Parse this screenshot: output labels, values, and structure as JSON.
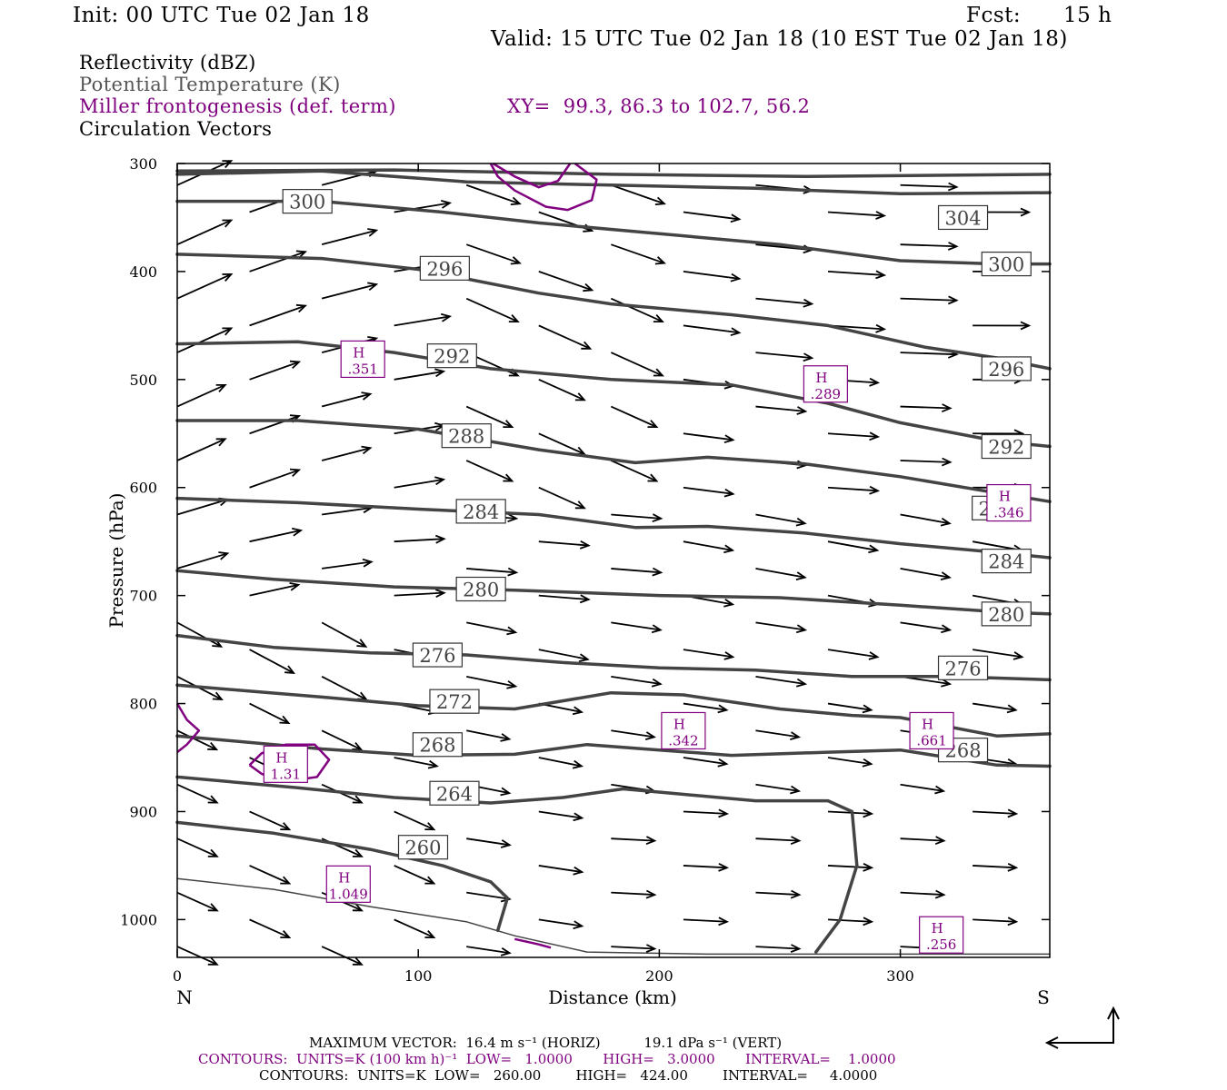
{
  "header": {
    "init": "Init: 00 UTC Tue 02 Jan 18",
    "fcst_label": "Fcst:",
    "fcst_value": "15 h",
    "valid": "Valid: 15 UTC Tue 02 Jan 18 (10 EST Tue 02 Jan 18)"
  },
  "legend": {
    "reflectivity": "Reflectivity (dBZ)",
    "theta": "Potential Temperature (K)",
    "frontogenesis": "Miller frontogenesis (def. term)",
    "xy": "XY=  99.3, 86.3 to 102.7, 56.2",
    "vectors": "Circulation Vectors"
  },
  "footer": {
    "max_vector": "MAXIMUM VECTOR:  16.4 m s⁻¹ (HORIZ)          19.1 dPa s⁻¹ (VERT)",
    "contours_purple": "CONTOURS:  UNITS=K (100 km h)⁻¹  LOW=   1.0000       HIGH=   3.0000       INTERVAL=    1.0000",
    "contours_black": "CONTOURS:  UNITS=K  LOW=   260.00        HIGH=   424.00        INTERVAL=     4.0000"
  },
  "colors": {
    "theta": "#444444",
    "fronto": "#800080",
    "vector": "#000000"
  },
  "chart_data": {
    "type": "cross-section",
    "xlabel": "Distance (km)",
    "ylabel": "Pressure (hPa)",
    "x_left_label": "N",
    "x_right_label": "S",
    "xlim": [
      0,
      362
    ],
    "ylim": [
      300,
      1035
    ],
    "y_scale": "linear",
    "x_ticks": [
      0,
      100,
      200,
      300
    ],
    "y_ticks": [
      300,
      400,
      500,
      600,
      700,
      800,
      900,
      1000
    ],
    "isentropes": [
      {
        "label": "260",
        "label_x": 102,
        "label_y": 933,
        "points": [
          [
            0,
            910
          ],
          [
            40,
            920
          ],
          [
            80,
            935
          ],
          [
            110,
            950
          ],
          [
            130,
            965
          ],
          [
            137,
            980
          ],
          [
            133,
            1010
          ]
        ]
      },
      {
        "label": "264",
        "label_x": 115,
        "label_y": 883,
        "points": [
          [
            0,
            868
          ],
          [
            50,
            878
          ],
          [
            90,
            887
          ],
          [
            130,
            892
          ],
          [
            160,
            887
          ],
          [
            185,
            879
          ],
          [
            205,
            883
          ],
          [
            240,
            890
          ],
          [
            270,
            890
          ],
          [
            280,
            900
          ],
          [
            282,
            950
          ],
          [
            275,
            1000
          ],
          [
            265,
            1030
          ]
        ]
      },
      {
        "label": "268",
        "label_x": 108,
        "label_y": 838,
        "points": [
          [
            0,
            830
          ],
          [
            60,
            842
          ],
          [
            100,
            848
          ],
          [
            140,
            847
          ],
          [
            170,
            838
          ],
          [
            200,
            843
          ],
          [
            230,
            848
          ],
          [
            270,
            845
          ],
          [
            300,
            843
          ],
          [
            340,
            857
          ],
          [
            362,
            858
          ]
        ]
      },
      {
        "label": "268",
        "label_x": 326,
        "label_y": 843
      },
      {
        "label": "272",
        "label_x": 115,
        "label_y": 798,
        "points": [
          [
            0,
            783
          ],
          [
            60,
            794
          ],
          [
            100,
            802
          ],
          [
            140,
            805
          ],
          [
            180,
            790
          ],
          [
            210,
            792
          ],
          [
            250,
            805
          ],
          [
            280,
            811
          ],
          [
            300,
            813
          ],
          [
            340,
            830
          ],
          [
            362,
            828
          ]
        ]
      },
      {
        "label": "276",
        "label_x": 108,
        "label_y": 755,
        "points": [
          [
            0,
            737
          ],
          [
            40,
            748
          ],
          [
            80,
            753
          ],
          [
            120,
            755
          ],
          [
            160,
            762
          ],
          [
            200,
            767
          ],
          [
            240,
            769
          ],
          [
            280,
            775
          ],
          [
            320,
            775
          ],
          [
            362,
            778
          ]
        ]
      },
      {
        "label": "276",
        "label_x": 326,
        "label_y": 767
      },
      {
        "label": "280",
        "label_x": 126,
        "label_y": 694,
        "points": [
          [
            0,
            677
          ],
          [
            40,
            685
          ],
          [
            90,
            692
          ],
          [
            140,
            695
          ],
          [
            200,
            700
          ],
          [
            250,
            702
          ],
          [
            300,
            709
          ],
          [
            340,
            715
          ],
          [
            362,
            717
          ]
        ]
      },
      {
        "label": "280",
        "label_x": 344,
        "label_y": 717
      },
      {
        "label": "284",
        "label_x": 126,
        "label_y": 622,
        "points": [
          [
            0,
            610
          ],
          [
            50,
            614
          ],
          [
            100,
            620
          ],
          [
            150,
            625
          ],
          [
            190,
            637
          ],
          [
            220,
            636
          ],
          [
            260,
            642
          ],
          [
            300,
            652
          ],
          [
            340,
            660
          ],
          [
            362,
            665
          ]
        ]
      },
      {
        "label": "284",
        "label_x": 344,
        "label_y": 668
      },
      {
        "label": "288",
        "label_x": 120,
        "label_y": 552,
        "points": [
          [
            0,
            538
          ],
          [
            50,
            538
          ],
          [
            100,
            546
          ],
          [
            150,
            565
          ],
          [
            190,
            577
          ],
          [
            220,
            572
          ],
          [
            260,
            578
          ],
          [
            300,
            590
          ],
          [
            340,
            605
          ],
          [
            362,
            613
          ]
        ]
      },
      {
        "label": "288",
        "label_x": 340,
        "label_y": 619
      },
      {
        "label": "292",
        "label_x": 114,
        "label_y": 478,
        "points": [
          [
            0,
            467
          ],
          [
            50,
            465
          ],
          [
            90,
            475
          ],
          [
            130,
            490
          ],
          [
            180,
            500
          ],
          [
            230,
            505
          ],
          [
            270,
            522
          ],
          [
            300,
            540
          ],
          [
            340,
            557
          ],
          [
            362,
            562
          ]
        ]
      },
      {
        "label": "292",
        "label_x": 344,
        "label_y": 562
      },
      {
        "label": "296",
        "label_x": 111,
        "label_y": 397,
        "points": [
          [
            0,
            384
          ],
          [
            60,
            388
          ],
          [
            100,
            398
          ],
          [
            150,
            420
          ],
          [
            180,
            430
          ],
          [
            230,
            440
          ],
          [
            270,
            450
          ],
          [
            310,
            470
          ],
          [
            340,
            480
          ],
          [
            362,
            490
          ]
        ]
      },
      {
        "label": "296",
        "label_x": 344,
        "label_y": 490
      },
      {
        "label": "300",
        "label_x": 54,
        "label_y": 335,
        "points": [
          [
            0,
            335
          ],
          [
            60,
            335
          ],
          [
            110,
            345
          ],
          [
            150,
            355
          ],
          [
            200,
            365
          ],
          [
            250,
            375
          ],
          [
            300,
            390
          ],
          [
            340,
            393
          ],
          [
            362,
            393
          ]
        ]
      },
      {
        "label": "300",
        "label_x": 344,
        "label_y": 393
      },
      {
        "label": "304",
        "label_x": 326,
        "label_y": 350,
        "points": [
          [
            0,
            310
          ],
          [
            60,
            307
          ],
          [
            120,
            317
          ],
          [
            180,
            320
          ],
          [
            240,
            323
          ],
          [
            300,
            328
          ],
          [
            362,
            327
          ]
        ]
      },
      {
        "label": "",
        "points": [
          [
            0,
            307
          ],
          [
            90,
            306
          ],
          [
            180,
            310
          ],
          [
            260,
            312
          ],
          [
            362,
            310
          ]
        ]
      },
      {
        "label": "",
        "points": [
          [
            0,
            962
          ],
          [
            40,
            972
          ],
          [
            80,
            988
          ],
          [
            120,
            1002
          ],
          [
            140,
            1015
          ],
          [
            170,
            1030
          ],
          [
            220,
            1032
          ],
          [
            362,
            1032
          ]
        ],
        "thin": true
      }
    ],
    "frontogenesis_maxima": [
      {
        "label": "H",
        "value": ".351",
        "x": 77,
        "y": 482
      },
      {
        "label": "H",
        "value": ".289",
        "x": 269,
        "y": 505
      },
      {
        "label": "H",
        "value": ".346",
        "x": 345,
        "y": 615
      },
      {
        "label": "H",
        "value": ".342",
        "x": 210,
        "y": 826
      },
      {
        "label": "H",
        "value": ".661",
        "x": 313,
        "y": 826
      },
      {
        "label": "H",
        "value": "1.31",
        "x": 45,
        "y": 857
      },
      {
        "label": "H",
        "value": "1.049",
        "x": 71,
        "y": 968
      },
      {
        "label": "H",
        "value": ".256",
        "x": 317,
        "y": 1015
      }
    ],
    "frontogenesis_contours": [
      {
        "points": [
          [
            131,
            300
          ],
          [
            140,
            312
          ],
          [
            150,
            322
          ],
          [
            158,
            316
          ],
          [
            163,
            300
          ]
        ]
      },
      {
        "points": [
          [
            130,
            300
          ],
          [
            133,
            312
          ],
          [
            140,
            325
          ],
          [
            153,
            340
          ],
          [
            162,
            343
          ],
          [
            172,
            334
          ],
          [
            174,
            315
          ],
          [
            165,
            300
          ]
        ]
      },
      {
        "points": [
          [
            0,
            800
          ],
          [
            4,
            815
          ],
          [
            9,
            825
          ],
          [
            4,
            838
          ],
          [
            0,
            845
          ]
        ]
      },
      {
        "points": [
          [
            30,
            857
          ],
          [
            35,
            846
          ],
          [
            45,
            838
          ],
          [
            57,
            838
          ],
          [
            63,
            852
          ],
          [
            58,
            868
          ],
          [
            45,
            872
          ],
          [
            35,
            865
          ],
          [
            30,
            857
          ]
        ]
      },
      {
        "points": [
          [
            140,
            1018
          ],
          [
            150,
            1023
          ],
          [
            155,
            1026
          ]
        ]
      }
    ],
    "vector_grid": {
      "x": [
        0,
        30,
        60,
        90,
        120,
        150,
        180,
        210,
        240,
        270,
        300,
        330,
        345
      ],
      "p": [
        320,
        345,
        375,
        400,
        425,
        450,
        475,
        500,
        525,
        550,
        575,
        600,
        625,
        650,
        675,
        700,
        725,
        750,
        775,
        800,
        825,
        850,
        875,
        900,
        925,
        950,
        975,
        1000,
        1025
      ]
    }
  }
}
